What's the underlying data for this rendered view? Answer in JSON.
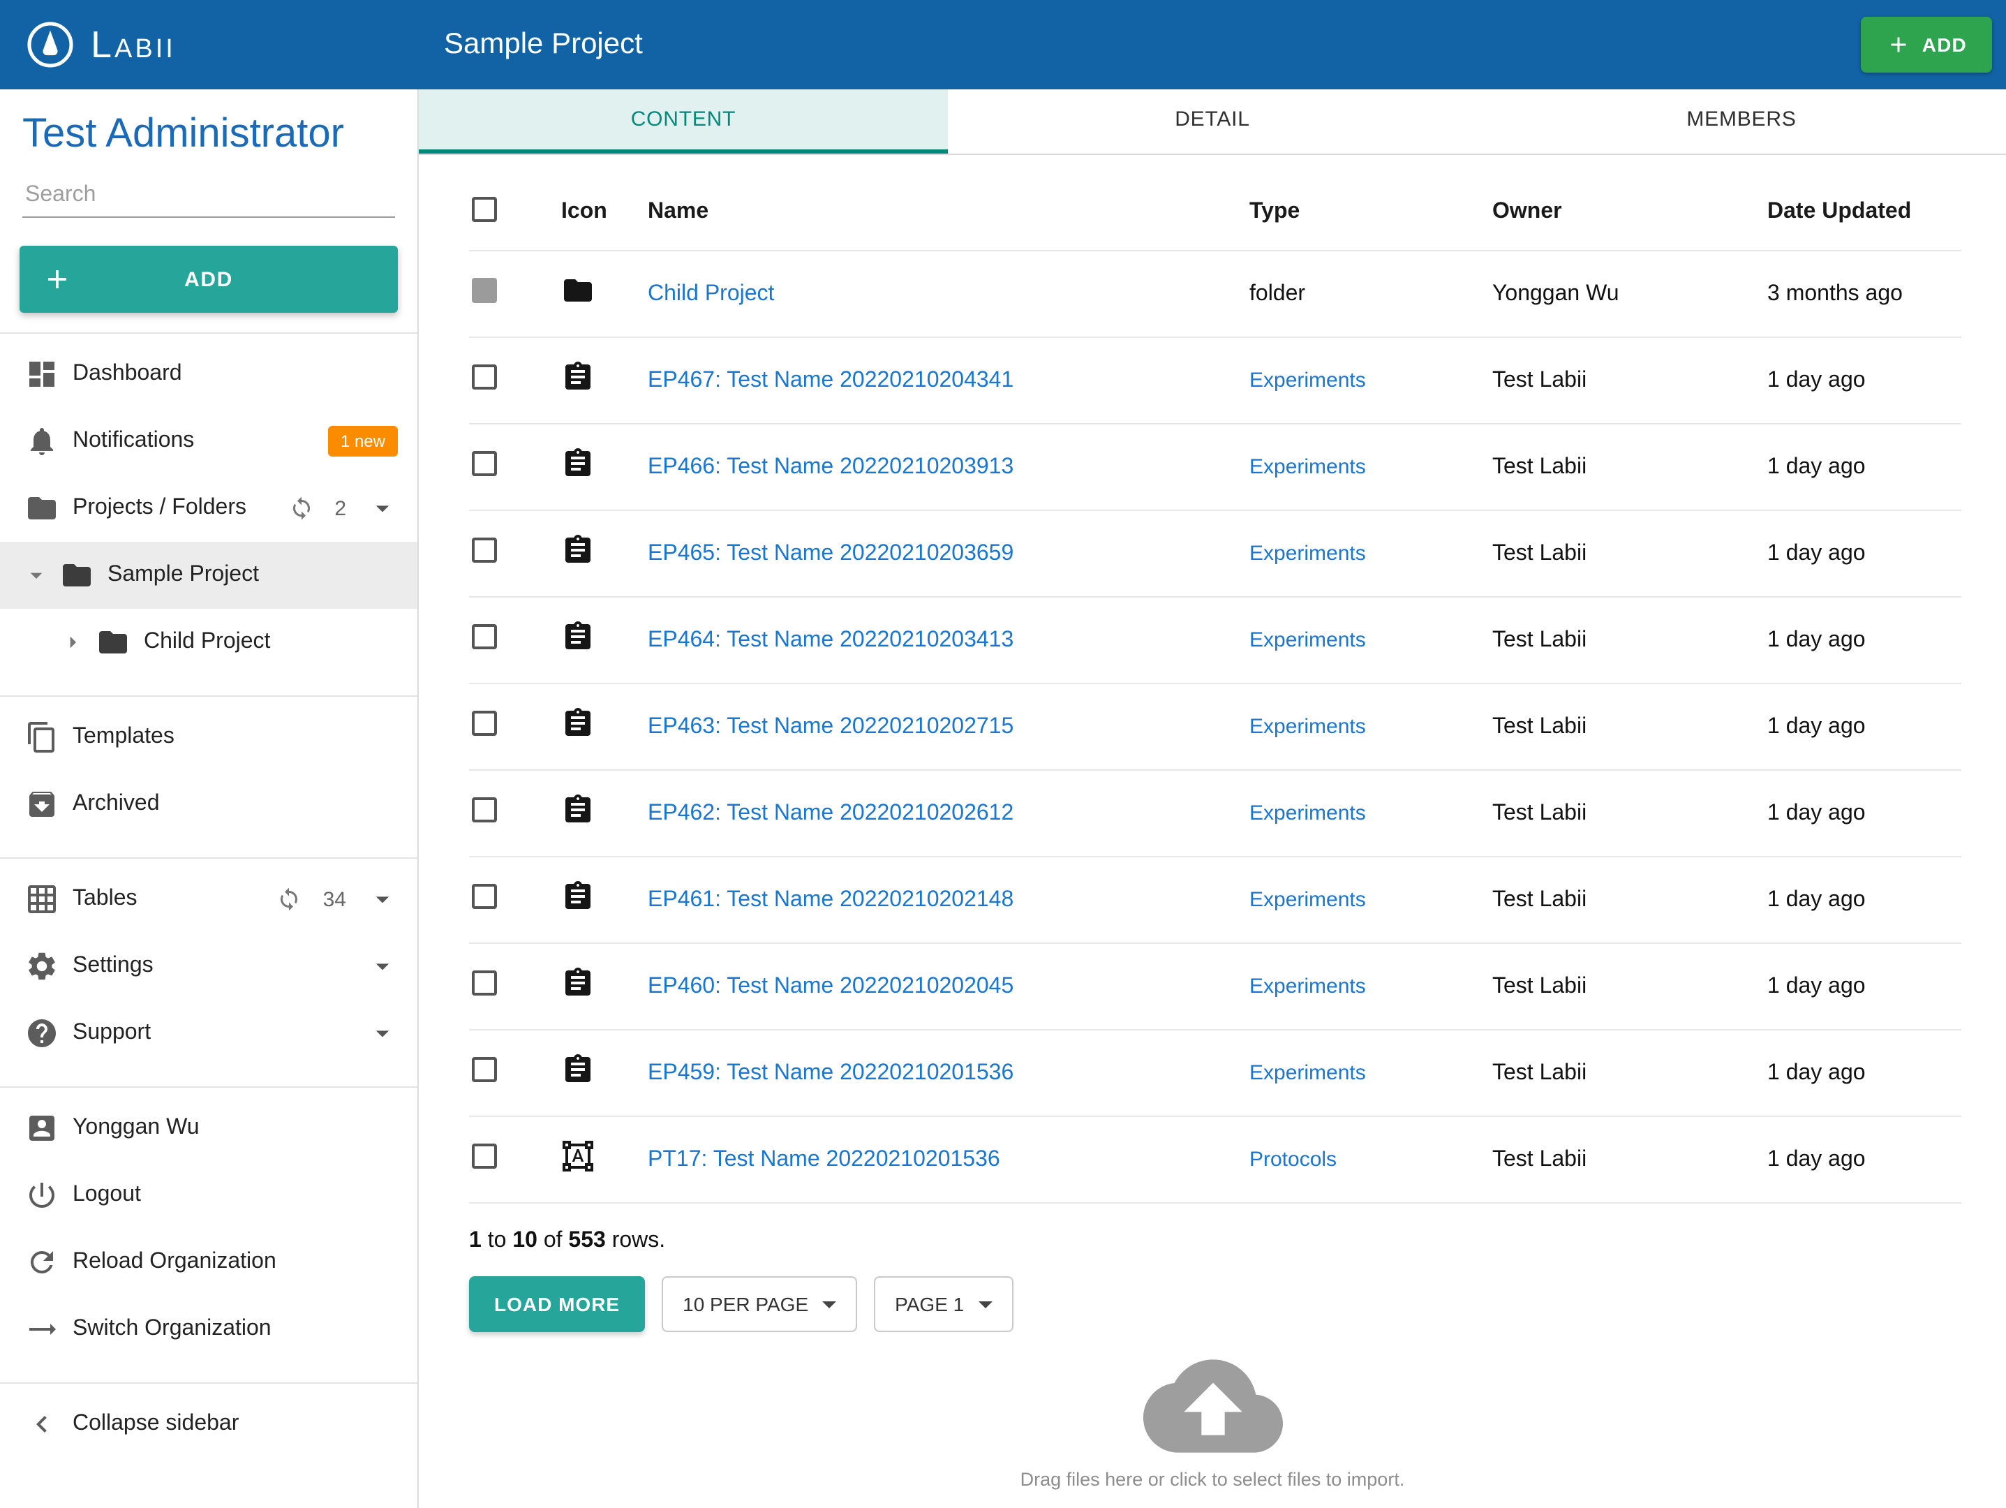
{
  "colors": {
    "header_blue": "#1263A5",
    "add_green": "#2EA44F",
    "teal": "#26A69A",
    "tab_active": "#00897B",
    "tab_active_bg": "#E1F1EF",
    "link_blue": "#1976D2",
    "badge_orange": "#FB8C00"
  },
  "brand": {
    "name": "Labii"
  },
  "header": {
    "title": "Sample Project",
    "add_label": "ADD"
  },
  "sidebar": {
    "user_title": "Test Administrator",
    "search_placeholder": "Search",
    "add_label": "ADD",
    "items": [
      {
        "label": "Dashboard"
      },
      {
        "label": "Notifications",
        "badge": "1 new"
      },
      {
        "label": "Projects / Folders",
        "count": "2"
      },
      {
        "label": "Sample Project"
      },
      {
        "label": "Child Project"
      },
      {
        "label": "Templates"
      },
      {
        "label": "Archived"
      },
      {
        "label": "Tables",
        "count": "34"
      },
      {
        "label": "Settings"
      },
      {
        "label": "Support"
      },
      {
        "label": "Yonggan Wu"
      },
      {
        "label": "Logout"
      },
      {
        "label": "Reload Organization"
      },
      {
        "label": "Switch Organization"
      },
      {
        "label": "Collapse sidebar"
      }
    ]
  },
  "tabs": [
    {
      "label": "CONTENT"
    },
    {
      "label": "DETAIL"
    },
    {
      "label": "MEMBERS"
    }
  ],
  "table": {
    "headers": [
      "Icon",
      "Name",
      "Type",
      "Owner",
      "Date Updated"
    ],
    "rows": [
      {
        "icon": "folder",
        "checkbox": "filled",
        "name": "Child Project",
        "type": "folder",
        "type_link": false,
        "owner": "Yonggan Wu",
        "date": "3 months ago"
      },
      {
        "icon": "clipboard",
        "checkbox": "empty",
        "name": "EP467: Test Name 20220210204341",
        "type": "Experiments",
        "type_link": true,
        "owner": "Test Labii",
        "date": "1 day ago"
      },
      {
        "icon": "clipboard",
        "checkbox": "empty",
        "name": "EP466: Test Name 20220210203913",
        "type": "Experiments",
        "type_link": true,
        "owner": "Test Labii",
        "date": "1 day ago"
      },
      {
        "icon": "clipboard",
        "checkbox": "empty",
        "name": "EP465: Test Name 20220210203659",
        "type": "Experiments",
        "type_link": true,
        "owner": "Test Labii",
        "date": "1 day ago"
      },
      {
        "icon": "clipboard",
        "checkbox": "empty",
        "name": "EP464: Test Name 20220210203413",
        "type": "Experiments",
        "type_link": true,
        "owner": "Test Labii",
        "date": "1 day ago"
      },
      {
        "icon": "clipboard",
        "checkbox": "empty",
        "name": "EP463: Test Name 20220210202715",
        "type": "Experiments",
        "type_link": true,
        "owner": "Test Labii",
        "date": "1 day ago"
      },
      {
        "icon": "clipboard",
        "checkbox": "empty",
        "name": "EP462: Test Name 20220210202612",
        "type": "Experiments",
        "type_link": true,
        "owner": "Test Labii",
        "date": "1 day ago"
      },
      {
        "icon": "clipboard",
        "checkbox": "empty",
        "name": "EP461: Test Name 20220210202148",
        "type": "Experiments",
        "type_link": true,
        "owner": "Test Labii",
        "date": "1 day ago"
      },
      {
        "icon": "clipboard",
        "checkbox": "empty",
        "name": "EP460: Test Name 20220210202045",
        "type": "Experiments",
        "type_link": true,
        "owner": "Test Labii",
        "date": "1 day ago"
      },
      {
        "icon": "clipboard",
        "checkbox": "empty",
        "name": "EP459: Test Name 20220210201536",
        "type": "Experiments",
        "type_link": true,
        "owner": "Test Labii",
        "date": "1 day ago"
      },
      {
        "icon": "protocol",
        "checkbox": "empty",
        "name": "PT17: Test Name 20220210201536",
        "type": "Protocols",
        "type_link": true,
        "owner": "Test Labii",
        "date": "1 day ago"
      }
    ]
  },
  "pagination": {
    "start": "1",
    "to_word": "to",
    "end": "10",
    "of_word": "of",
    "total": "553",
    "rows_word": "rows.",
    "load_more": "LOAD MORE",
    "per_page": "10 PER PAGE",
    "page": "PAGE 1"
  },
  "dropzone": {
    "hint": "Drag files here or click to select files to import."
  }
}
